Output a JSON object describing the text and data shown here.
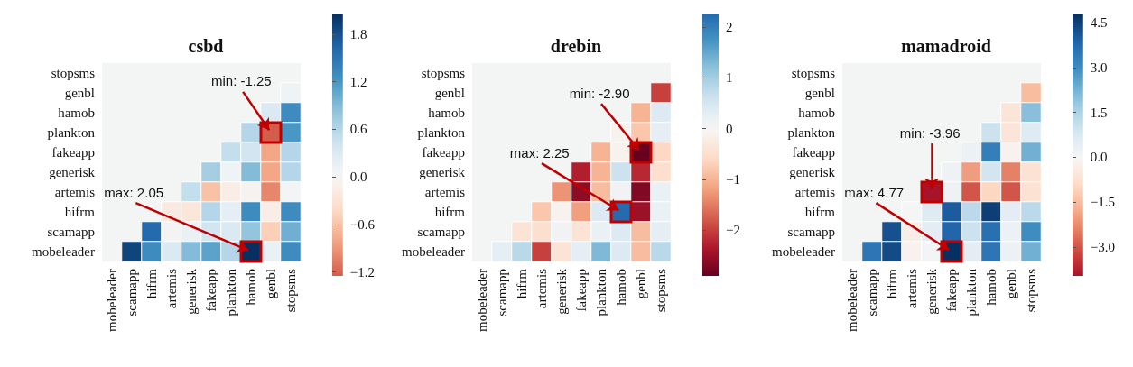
{
  "chart_data": [
    {
      "type": "heatmap",
      "title": "csbd",
      "categories": [
        "mobeleader",
        "scamapp",
        "hifrm",
        "artemis",
        "generisk",
        "fakeapp",
        "plankton",
        "hamob",
        "genbl",
        "stopsms"
      ],
      "y_categories": [
        "stopsms",
        "genbl",
        "hamob",
        "plankton",
        "fakeapp",
        "generisk",
        "artemis",
        "hifrm",
        "scamapp",
        "mobeleader"
      ],
      "cells": [
        [
          null,
          null,
          null,
          null,
          null,
          null,
          null,
          null,
          null,
          null
        ],
        [
          null,
          null,
          null,
          null,
          null,
          null,
          null,
          null,
          null,
          0.1
        ],
        [
          null,
          null,
          null,
          null,
          null,
          null,
          null,
          null,
          0.3,
          1.3
        ],
        [
          null,
          null,
          null,
          null,
          null,
          null,
          null,
          0.6,
          -1.25,
          1.2
        ],
        [
          null,
          null,
          null,
          null,
          null,
          null,
          0.5,
          0.4,
          -0.8,
          0.6
        ],
        [
          null,
          null,
          null,
          null,
          null,
          0.7,
          0.1,
          0.9,
          -0.8,
          0.6
        ],
        [
          null,
          null,
          null,
          null,
          0.5,
          -0.6,
          -0.15,
          -0.05,
          -1.0,
          0.05
        ],
        [
          null,
          null,
          null,
          -0.2,
          -0.25,
          0.6,
          0.2,
          1.3,
          -0.15,
          1.3
        ],
        [
          null,
          null,
          1.6,
          0.02,
          0.15,
          0.4,
          0.3,
          0.8,
          -0.5,
          1.0
        ],
        [
          null,
          1.9,
          1.3,
          0.3,
          0.9,
          1.1,
          0.6,
          2.05,
          0.15,
          1.3
        ]
      ],
      "clim": [
        -1.25,
        2.05
      ],
      "cticks": [
        {
          "value": -1.2,
          "label": "−1.2"
        },
        {
          "value": -0.6,
          "label": "−0.6"
        },
        {
          "value": 0,
          "label": "0.0"
        },
        {
          "value": 0.6,
          "label": "0.6"
        },
        {
          "value": 1.2,
          "label": "1.2"
        },
        {
          "value": 1.8,
          "label": "1.8"
        }
      ],
      "annotations": [
        {
          "text": "min: -1.25",
          "x": "genbl",
          "y": "plankton"
        },
        {
          "text": "max: 2.05",
          "x": "hamob",
          "y": "mobeleader"
        }
      ]
    },
    {
      "type": "heatmap",
      "title": "drebin",
      "categories": [
        "mobeleader",
        "scamapp",
        "hifrm",
        "artemis",
        "generisk",
        "fakeapp",
        "plankton",
        "hamob",
        "genbl",
        "stopsms"
      ],
      "y_categories": [
        "stopsms",
        "genbl",
        "hamob",
        "plankton",
        "fakeapp",
        "generisk",
        "artemis",
        "hifrm",
        "scamapp",
        "mobeleader"
      ],
      "cells": [
        [
          null,
          null,
          null,
          null,
          null,
          null,
          null,
          null,
          null,
          null
        ],
        [
          null,
          null,
          null,
          null,
          null,
          null,
          null,
          null,
          null,
          -2.0
        ],
        [
          null,
          null,
          null,
          null,
          null,
          null,
          null,
          null,
          -1.0,
          0.4
        ],
        [
          null,
          null,
          null,
          null,
          null,
          null,
          null,
          -0.1,
          -0.8,
          0.3
        ],
        [
          null,
          null,
          null,
          null,
          null,
          null,
          -1.0,
          -0.1,
          -2.9,
          -0.6
        ],
        [
          null,
          null,
          null,
          null,
          null,
          -2.3,
          -1.0,
          0.6,
          -2.2,
          -0.5
        ],
        [
          null,
          null,
          null,
          null,
          -1.3,
          -2.6,
          -0.9,
          0.1,
          -2.7,
          0.2
        ],
        [
          null,
          null,
          null,
          -0.8,
          -0.1,
          -1.2,
          0.4,
          2.25,
          -2.5,
          0.2
        ],
        [
          null,
          null,
          -0.4,
          -0.5,
          0.1,
          -0.4,
          0.2,
          0.4,
          -0.9,
          0.3
        ],
        [
          null,
          0.3,
          0.8,
          -2.0,
          -0.4,
          0.3,
          1.3,
          0.4,
          -0.9,
          0.8
        ]
      ],
      "clim": [
        -2.9,
        2.25
      ],
      "cticks": [
        {
          "value": -2,
          "label": "−2"
        },
        {
          "value": -1,
          "label": "−1"
        },
        {
          "value": 0,
          "label": "0"
        },
        {
          "value": 1,
          "label": "1"
        },
        {
          "value": 2,
          "label": "2"
        }
      ],
      "annotations": [
        {
          "text": "min: -2.90",
          "x": "genbl",
          "y": "fakeapp"
        },
        {
          "text": "max: 2.25",
          "x": "hamob",
          "y": "hifrm"
        }
      ]
    },
    {
      "type": "heatmap",
      "title": "mamadroid",
      "categories": [
        "mobeleader",
        "scamapp",
        "hifrm",
        "artemis",
        "generisk",
        "fakeapp",
        "plankton",
        "hamob",
        "genbl",
        "stopsms"
      ],
      "y_categories": [
        "stopsms",
        "genbl",
        "hamob",
        "plankton",
        "fakeapp",
        "generisk",
        "artemis",
        "hifrm",
        "scamapp",
        "mobeleader"
      ],
      "cells": [
        [
          null,
          null,
          null,
          null,
          null,
          null,
          null,
          null,
          null,
          null
        ],
        [
          null,
          null,
          null,
          null,
          null,
          null,
          null,
          null,
          null,
          -1.5
        ],
        [
          null,
          null,
          null,
          null,
          null,
          null,
          null,
          null,
          -0.6,
          2.0
        ],
        [
          null,
          null,
          null,
          null,
          null,
          null,
          null,
          1.0,
          -0.6,
          0.6
        ],
        [
          null,
          null,
          null,
          null,
          null,
          null,
          0.3,
          3.3,
          -0.2,
          2.3
        ],
        [
          null,
          null,
          null,
          null,
          null,
          0.2,
          -2.0,
          0.9,
          -2.4,
          -0.7
        ],
        [
          null,
          null,
          null,
          null,
          -3.96,
          0.2,
          -3.0,
          -1.0,
          -3.0,
          -0.7
        ],
        [
          null,
          null,
          null,
          0.05,
          0.6,
          4.0,
          1.3,
          4.5,
          0.5,
          1.3
        ],
        [
          null,
          null,
          4.2,
          -0.3,
          0.5,
          3.8,
          1.0,
          3.6,
          0.3,
          3.0
        ],
        [
          null,
          3.5,
          4.3,
          -0.2,
          0.1,
          4.77,
          0.5,
          3.5,
          0.3,
          2.3
        ]
      ],
      "clim": [
        -3.96,
        4.77
      ],
      "cticks": [
        {
          "value": -3,
          "label": "−3.0"
        },
        {
          "value": -1.5,
          "label": "−1.5"
        },
        {
          "value": 0,
          "label": "0.0"
        },
        {
          "value": 1.5,
          "label": "1.5"
        },
        {
          "value": 3,
          "label": "3.0"
        },
        {
          "value": 4.5,
          "label": "4.5"
        }
      ],
      "annotations": [
        {
          "text": "min: -3.96",
          "x": "generisk",
          "y": "artemis"
        },
        {
          "text": "max: 4.77",
          "x": "fakeapp",
          "y": "mobeleader"
        }
      ]
    }
  ]
}
